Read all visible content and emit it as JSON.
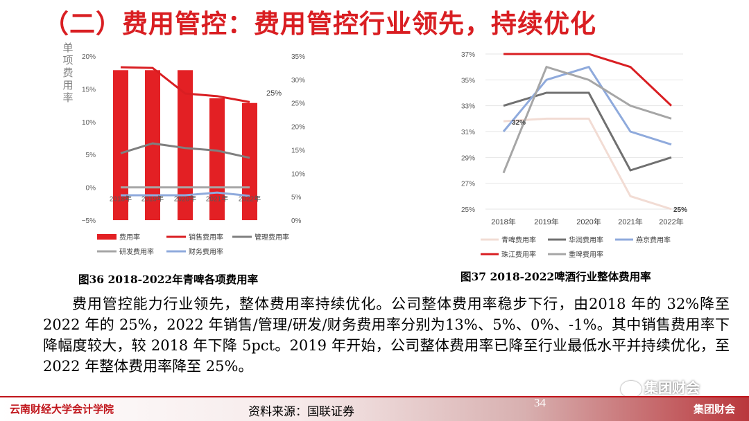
{
  "header": {
    "title": "（二）费用管控：费用管控行业领先，持续优化"
  },
  "chart_data": [
    {
      "type": "bar",
      "ylabel": "单项费用率",
      "categories": [
        "2018年",
        "2019年",
        "2020年",
        "2021年",
        "2022年"
      ],
      "category_labels": [
        "2018年",
        "2019年",
        "2020年",
        "2021年",
        "2022年"
      ],
      "left_ticks": [
        "20%",
        "15%",
        "10%",
        "5%",
        "0%",
        "−5%"
      ],
      "right_ticks": [
        "35%",
        "30%",
        "25%",
        "20%",
        "15%",
        "10%",
        "5%",
        "0%"
      ],
      "ylim_left": [
        -5,
        20
      ],
      "ylim_right": [
        0,
        35
      ],
      "series": [
        {
          "name": "费用率",
          "axis": "right",
          "kind": "bar",
          "color": "#e32024",
          "values": [
            32,
            32,
            32,
            26,
            25
          ]
        },
        {
          "name": "销售费用率",
          "axis": "left",
          "kind": "line",
          "color": "#d91e22",
          "values": [
            18.3,
            18.2,
            14.3,
            13.9,
            13.0
          ]
        },
        {
          "name": "管理费用率",
          "axis": "left",
          "kind": "line",
          "color": "#7f7f7f",
          "values": [
            5.2,
            6.7,
            6.0,
            5.6,
            4.5
          ]
        },
        {
          "name": "研发费用率",
          "axis": "left",
          "kind": "line",
          "color": "#a6a6a6",
          "values": [
            0.0,
            0.0,
            0.0,
            0.0,
            0.0
          ]
        },
        {
          "name": "财务费用率",
          "axis": "left",
          "kind": "line",
          "color": "#8faadc",
          "values": [
            -1.2,
            -1.2,
            -1.2,
            -0.8,
            -1.3
          ]
        }
      ],
      "annotations": [
        {
          "text": "25%"
        }
      ],
      "legend_position": "bottom"
    },
    {
      "type": "line",
      "categories": [
        "2018年",
        "2019年",
        "2020年",
        "2021年",
        "2022年"
      ],
      "y_ticks": [
        "37%",
        "35%",
        "33%",
        "31%",
        "29%",
        "27%",
        "25%"
      ],
      "ylim": [
        25,
        37
      ],
      "grid": true,
      "series": [
        {
          "name": "青啤费用率",
          "color": "#f2dcd4",
          "values": [
            31.8,
            32.0,
            32.0,
            26.0,
            25.0
          ]
        },
        {
          "name": "华润费用率",
          "color": "#707070",
          "values": [
            33.0,
            34.0,
            34.0,
            28.0,
            29.0
          ]
        },
        {
          "name": "燕京费用率",
          "color": "#8faadc",
          "values": [
            31.0,
            35.0,
            36.0,
            31.0,
            30.0
          ]
        },
        {
          "name": "珠江费用率",
          "color": "#d91e22",
          "values": [
            37.0,
            37.0,
            37.0,
            36.0,
            33.0
          ]
        },
        {
          "name": "重啤费用率",
          "color": "#a6a6a6",
          "values": [
            27.8,
            36.0,
            35.0,
            33.0,
            32.0
          ]
        }
      ],
      "annotations": [
        {
          "text": "32%"
        },
        {
          "text": "25%"
        }
      ],
      "legend_position": "bottom"
    }
  ],
  "captions": {
    "fig36": "图36  2018-2022年青啤各项费用率",
    "fig37": "图37  2018-2022啤酒行业整体费用率"
  },
  "body": {
    "paragraph": "费用管控能力行业领先，整体费用率持续优化。公司整体费用率稳步下行，由2018 年的 32%降至 2022 年的 25%，2022 年销售/管理/研发/财务费用率分别为13%、5%、0%、-1%。其中销售费用率下降幅度较大，较 2018 年下降 5pct。2019 年开始，公司整体费用率已降至行业最低水平并持续优化，至 2022 年整体费用率降至 25%。"
  },
  "footer": {
    "school": "云南财经大学会计学院",
    "source": "资料来源：国联证券",
    "page": "34",
    "brand": "集团财会",
    "watermark": "集团财会"
  },
  "colors": {
    "accent": "#d91e22",
    "footer_red": "#c0151b"
  }
}
